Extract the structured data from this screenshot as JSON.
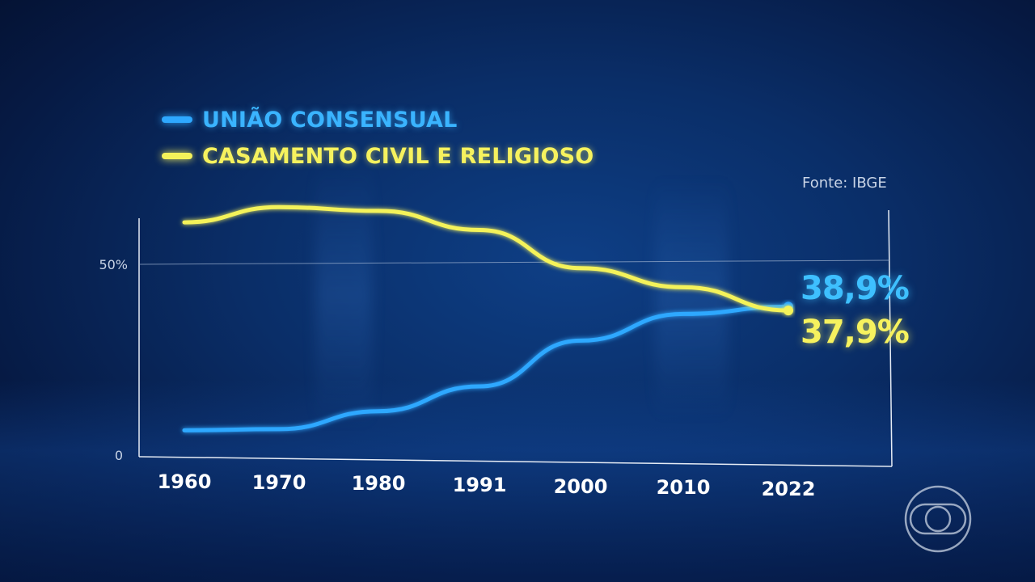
{
  "source": "Fonte: IBGE",
  "chart_data": {
    "type": "line",
    "title": "",
    "xlabel": "",
    "ylabel": "",
    "x": [
      "1960",
      "1970",
      "1980",
      "1991",
      "2000",
      "2010",
      "2022"
    ],
    "yticks": [
      "0",
      "50%"
    ],
    "ylim": [
      0,
      100
    ],
    "grid": "horizontal line at 50%",
    "legend_position": "top-left",
    "series": [
      {
        "name": "UNIÃO CONSENSUAL",
        "color": "#2ea8ff",
        "values": [
          6.5,
          6.8,
          11.5,
          18,
          30,
          37,
          38.9
        ]
      },
      {
        "name": "CASAMENTO CIVIL E RELIGIOSO",
        "color": "#f4f25a",
        "values": [
          61,
          65,
          64,
          59,
          49,
          44,
          37.9
        ]
      }
    ],
    "annotations": [
      {
        "series": 0,
        "text": "38,9%"
      },
      {
        "series": 1,
        "text": "37,9%"
      }
    ]
  },
  "logo_icon": "globo-logo-icon"
}
